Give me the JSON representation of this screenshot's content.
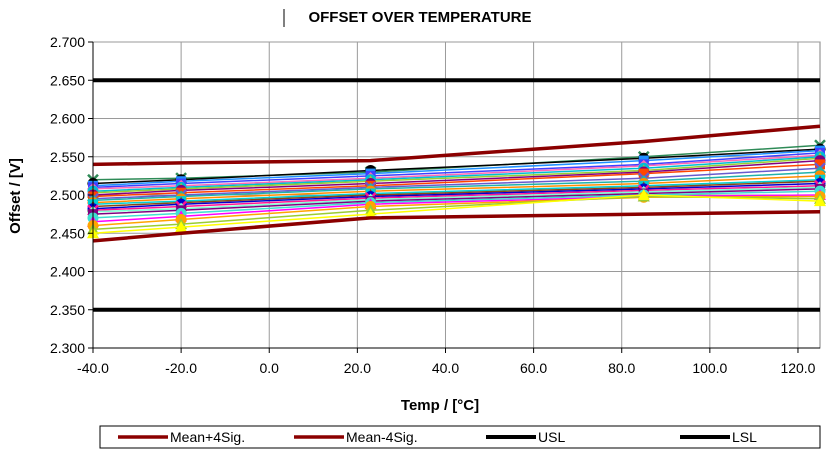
{
  "chart_data": {
    "type": "line",
    "title": "OFFSET OVER TEMPERATURE",
    "xlabel": "Temp / [°C]",
    "ylabel": "Offset / [V]",
    "xlim": [
      -40,
      125
    ],
    "ylim": [
      2.3,
      2.7
    ],
    "xticks": [
      -40,
      -20,
      0,
      20,
      40,
      60,
      80,
      100,
      120
    ],
    "xtick_labels": [
      "-40.0",
      "-20.0",
      "0.0",
      "20.0",
      "40.0",
      "60.0",
      "80.0",
      "100.0",
      "120.0"
    ],
    "yticks": [
      2.3,
      2.35,
      2.4,
      2.45,
      2.5,
      2.55,
      2.6,
      2.65,
      2.7
    ],
    "ytick_labels": [
      "2.300",
      "2.350",
      "2.400",
      "2.450",
      "2.500",
      "2.550",
      "2.600",
      "2.650",
      "2.700"
    ],
    "grid": true,
    "legend_position": "bottom",
    "x": [
      -40,
      -20,
      23,
      85,
      125
    ],
    "series": [
      {
        "name": "Mean+4Sig.",
        "values": [
          2.54,
          2.542,
          2.545,
          2.57,
          2.59
        ],
        "color": "#8b0000",
        "width": 3.5
      },
      {
        "name": "Mean-4Sig.",
        "values": [
          2.44,
          2.45,
          2.47,
          2.475,
          2.478
        ],
        "color": "#8b0000",
        "width": 3.5
      },
      {
        "name": "USL",
        "values": [
          2.65,
          2.65,
          2.65,
          2.65,
          2.65
        ],
        "color": "#000000",
        "width": 4
      },
      {
        "name": "LSL",
        "values": [
          2.35,
          2.35,
          2.35,
          2.35,
          2.35
        ],
        "color": "#000000",
        "width": 4
      },
      {
        "values": [
          2.52,
          2.522,
          2.53,
          2.55,
          2.565
        ],
        "color": "#2e8b57",
        "marker": "x"
      },
      {
        "values": [
          2.515,
          2.52,
          2.532,
          2.548,
          2.56
        ],
        "color": "#000000",
        "marker": "circle"
      },
      {
        "values": [
          2.512,
          2.518,
          2.528,
          2.545,
          2.558
        ],
        "color": "#1e90ff",
        "marker": "square"
      },
      {
        "values": [
          2.51,
          2.515,
          2.525,
          2.54,
          2.555
        ],
        "color": "#4040ff",
        "marker": "square"
      },
      {
        "values": [
          2.508,
          2.512,
          2.522,
          2.538,
          2.552
        ],
        "color": "#ff69b4",
        "marker": "diamond"
      },
      {
        "values": [
          2.505,
          2.51,
          2.52,
          2.535,
          2.55
        ],
        "color": "#00bcd4",
        "marker": "circle"
      },
      {
        "values": [
          2.503,
          2.508,
          2.518,
          2.532,
          2.548
        ],
        "color": "#9acd32",
        "marker": "triangle"
      },
      {
        "values": [
          2.5,
          2.506,
          2.515,
          2.53,
          2.545
        ],
        "color": "#800080",
        "marker": "circle"
      },
      {
        "values": [
          2.498,
          2.503,
          2.512,
          2.528,
          2.54
        ],
        "color": "#ff4500",
        "marker": "square"
      },
      {
        "values": [
          2.495,
          2.5,
          2.51,
          2.522,
          2.535
        ],
        "color": "#6a5acd",
        "marker": "x"
      },
      {
        "values": [
          2.493,
          2.498,
          2.508,
          2.518,
          2.53
        ],
        "color": "#20b2aa",
        "marker": "diamond"
      },
      {
        "values": [
          2.49,
          2.495,
          2.505,
          2.515,
          2.525
        ],
        "color": "#ff8c00",
        "marker": "circle"
      },
      {
        "values": [
          2.488,
          2.492,
          2.502,
          2.512,
          2.52
        ],
        "color": "#00ced1",
        "marker": "square"
      },
      {
        "values": [
          2.485,
          2.49,
          2.5,
          2.51,
          2.518
        ],
        "color": "#8b4513",
        "marker": "triangle"
      },
      {
        "values": [
          2.482,
          2.488,
          2.498,
          2.508,
          2.515
        ],
        "color": "#0000cd",
        "marker": "circle"
      },
      {
        "values": [
          2.48,
          2.485,
          2.496,
          2.506,
          2.512
        ],
        "color": "#ff1493",
        "marker": "x"
      },
      {
        "values": [
          2.478,
          2.482,
          2.494,
          2.504,
          2.51
        ],
        "color": "#7fffd4",
        "marker": "diamond"
      },
      {
        "values": [
          2.475,
          2.48,
          2.492,
          2.502,
          2.508
        ],
        "color": "#800080",
        "marker": "square"
      },
      {
        "values": [
          2.47,
          2.476,
          2.49,
          2.5,
          2.505
        ],
        "color": "#40e0d0",
        "marker": "circle"
      },
      {
        "values": [
          2.465,
          2.472,
          2.488,
          2.498,
          2.5
        ],
        "color": "#ff00ff",
        "marker": "triangle"
      },
      {
        "values": [
          2.46,
          2.468,
          2.485,
          2.497,
          2.498
        ],
        "color": "#ffa500",
        "marker": "circle"
      },
      {
        "values": [
          2.455,
          2.462,
          2.48,
          2.498,
          2.495
        ],
        "color": "#9acd32",
        "marker": "triangle"
      },
      {
        "values": [
          2.45,
          2.458,
          2.475,
          2.5,
          2.492
        ],
        "color": "#ffff00",
        "marker": "triangle"
      }
    ]
  }
}
